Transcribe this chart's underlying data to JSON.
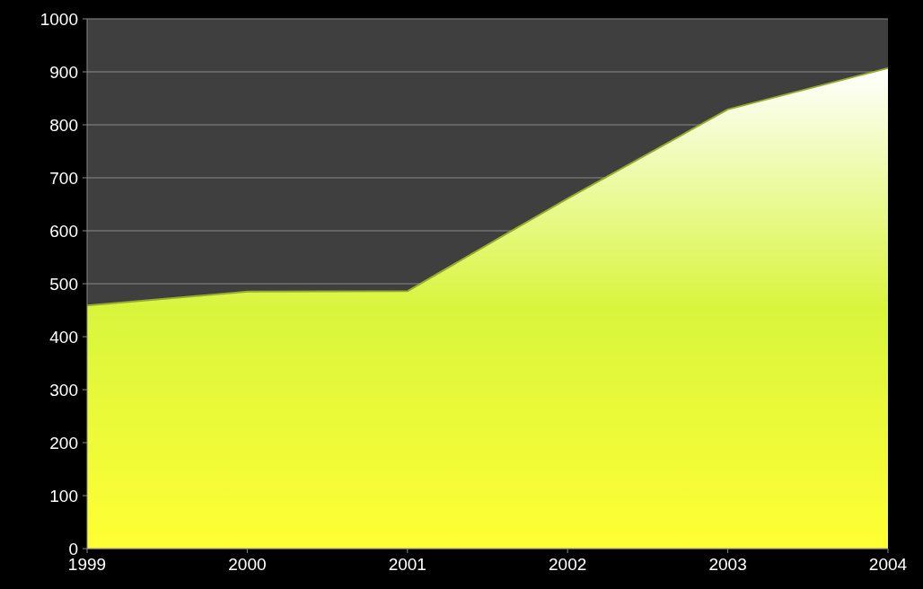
{
  "chart_data": {
    "type": "area",
    "categories": [
      "1999",
      "2000",
      "2001",
      "2002",
      "2003",
      "2004"
    ],
    "series": [
      {
        "color": "#d8f53c",
        "values": [
          459,
          485,
          486,
          661,
          829,
          907
        ]
      }
    ],
    "ylim": [
      0,
      1000
    ],
    "yticks": [
      0,
      100,
      200,
      300,
      400,
      500,
      600,
      700,
      800,
      900,
      1000
    ],
    "grid": "y"
  }
}
